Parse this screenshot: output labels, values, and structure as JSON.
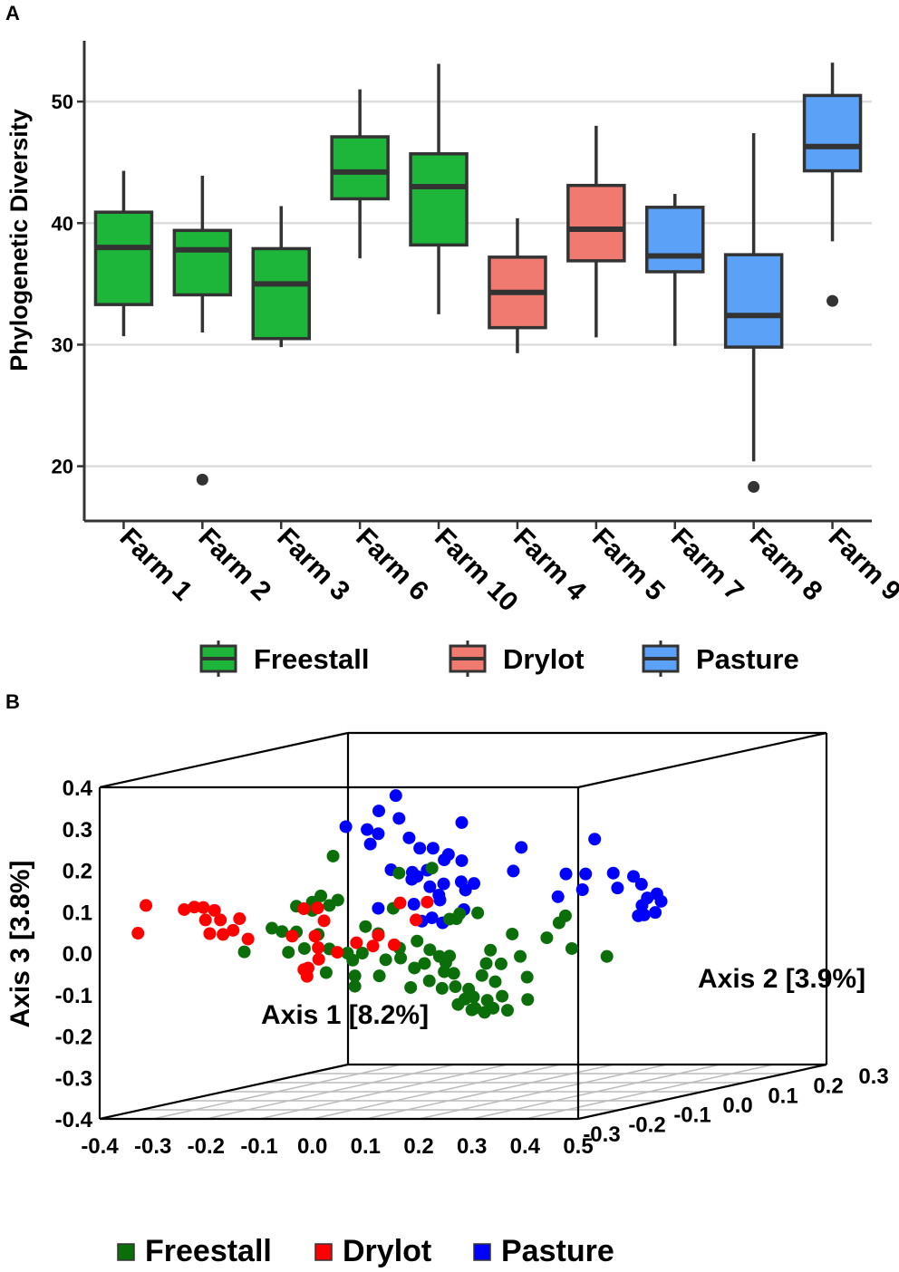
{
  "figure": {
    "panel_a_label": "A",
    "panel_b_label": "B"
  },
  "chart_data": [
    {
      "type": "box",
      "ylabel": "Phylogenetic Diversity",
      "ylim": [
        15.5,
        55
      ],
      "yticks": [
        20,
        30,
        40,
        50
      ],
      "grid": true,
      "legend": {
        "placement": "bottom",
        "entries": [
          {
            "name": "Freestall",
            "color": "#1db53a"
          },
          {
            "name": "Drylot",
            "color": "#f07a70"
          },
          {
            "name": "Pasture",
            "color": "#5aa1f7"
          }
        ]
      },
      "boxes": [
        {
          "category": "Farm 1",
          "group": "Freestall",
          "whisker_low": 30.7,
          "q1": 33.3,
          "median": 38.0,
          "q3": 40.9,
          "whisker_high": 44.3,
          "outliers": []
        },
        {
          "category": "Farm 2",
          "group": "Freestall",
          "whisker_low": 31.0,
          "q1": 34.1,
          "median": 37.8,
          "q3": 39.4,
          "whisker_high": 43.9,
          "outliers": [
            18.9
          ]
        },
        {
          "category": "Farm 3",
          "group": "Freestall",
          "whisker_low": 29.8,
          "q1": 30.5,
          "median": 35.0,
          "q3": 37.9,
          "whisker_high": 41.4,
          "outliers": []
        },
        {
          "category": "Farm 6",
          "group": "Freestall",
          "whisker_low": 37.1,
          "q1": 42.0,
          "median": 44.2,
          "q3": 47.1,
          "whisker_high": 51.0,
          "outliers": []
        },
        {
          "category": "Farm 10",
          "group": "Freestall",
          "whisker_low": 32.5,
          "q1": 38.2,
          "median": 43.0,
          "q3": 45.7,
          "whisker_high": 53.1,
          "outliers": []
        },
        {
          "category": "Farm 4",
          "group": "Drylot",
          "whisker_low": 29.3,
          "q1": 31.4,
          "median": 34.3,
          "q3": 37.2,
          "whisker_high": 40.4,
          "outliers": []
        },
        {
          "category": "Farm 5",
          "group": "Drylot",
          "whisker_low": 30.6,
          "q1": 36.9,
          "median": 39.5,
          "q3": 43.1,
          "whisker_high": 48.0,
          "outliers": []
        },
        {
          "category": "Farm 7",
          "group": "Pasture",
          "whisker_low": 29.9,
          "q1": 36.0,
          "median": 37.3,
          "q3": 41.3,
          "whisker_high": 42.4,
          "outliers": []
        },
        {
          "category": "Farm 8",
          "group": "Pasture",
          "whisker_low": 20.4,
          "q1": 29.8,
          "median": 32.4,
          "q3": 37.4,
          "whisker_high": 47.4,
          "outliers": [
            18.3
          ]
        },
        {
          "category": "Farm 9",
          "group": "Pasture",
          "whisker_low": 38.5,
          "q1": 44.3,
          "median": 46.3,
          "q3": 50.5,
          "whisker_high": 53.2,
          "outliers": [
            33.6
          ]
        }
      ]
    },
    {
      "type": "scatter3d",
      "xlabel": "Axis 1 [8.2%]",
      "ylabel": "Axis 2 [3.9%]",
      "zlabel": "Axis 3 [3.8%]",
      "xlim": [
        -0.4,
        0.5
      ],
      "ylim": [
        -0.3,
        0.3
      ],
      "zlim": [
        -0.4,
        0.4
      ],
      "xticks": [
        "-0.4",
        "-0.3",
        "-0.2",
        "-0.1",
        "0.0",
        "0.1",
        "0.2",
        "0.3",
        "0.4",
        "0.5"
      ],
      "yticks": [
        "-0.3",
        "-0.2",
        "-0.1",
        "0.0",
        "0.1",
        "0.2",
        "0.3"
      ],
      "zticks": [
        "0.4",
        "0.3",
        "0.2",
        "0.1",
        "0.0",
        "-0.1",
        "-0.2",
        "-0.3",
        "-0.4"
      ],
      "legend": {
        "placement": "bottom",
        "entries": [
          {
            "name": "Freestall",
            "color": "#0b6e0b"
          },
          {
            "name": "Drylot",
            "color": "#ff0000"
          },
          {
            "name": "Pasture",
            "color": "#0000ff"
          }
        ]
      },
      "note": "Points given as projected plot coordinates: x and z read against the front Axis 1 / Axis 3 scales.",
      "series": [
        {
          "name": "Pasture",
          "color": "#0000ff",
          "points": [
            [
              0.157,
              0.38
            ],
            [
              0.125,
              0.343
            ],
            [
              0.163,
              0.325
            ],
            [
              0.063,
              0.305
            ],
            [
              0.103,
              0.298
            ],
            [
              0.124,
              0.288
            ],
            [
              0.281,
              0.315
            ],
            [
              0.182,
              0.278
            ],
            [
              0.109,
              0.263
            ],
            [
              0.202,
              0.253
            ],
            [
              0.227,
              0.253
            ],
            [
              0.393,
              0.255
            ],
            [
              0.531,
              0.275
            ],
            [
              0.256,
              0.238
            ],
            [
              0.248,
              0.225
            ],
            [
              0.281,
              0.223
            ],
            [
              0.378,
              0.198
            ],
            [
              0.477,
              0.191
            ],
            [
              0.514,
              0.191
            ],
            [
              0.148,
              0.201
            ],
            [
              0.188,
              0.195
            ],
            [
              0.216,
              0.2
            ],
            [
              0.566,
              0.193
            ],
            [
              0.604,
              0.185
            ],
            [
              0.187,
              0.178
            ],
            [
              0.197,
              0.185
            ],
            [
              0.221,
              0.16
            ],
            [
              0.247,
              0.167
            ],
            [
              0.28,
              0.172
            ],
            [
              0.304,
              0.168
            ],
            [
              0.288,
              0.152
            ],
            [
              0.574,
              0.157
            ],
            [
              0.508,
              0.153
            ],
            [
              0.462,
              0.136
            ],
            [
              0.619,
              0.166
            ],
            [
              0.648,
              0.143
            ],
            [
              0.63,
              0.133
            ],
            [
              0.656,
              0.125
            ],
            [
              0.62,
              0.115
            ],
            [
              0.645,
              0.098
            ],
            [
              0.624,
              0.092
            ],
            [
              0.613,
              0.09
            ],
            [
              0.238,
              0.14
            ],
            [
              0.24,
              0.128
            ],
            [
              0.191,
              0.118
            ],
            [
              0.124,
              0.108
            ],
            [
              0.285,
              0.105
            ],
            [
              0.225,
              0.085
            ],
            [
              0.245,
              0.073
            ],
            [
              0.206,
              0.077
            ]
          ]
        },
        {
          "name": "Freestall",
          "color": "#0b6e0b",
          "points": [
            [
              0.039,
              0.234
            ],
            [
              0.163,
              0.193
            ],
            [
              0.225,
              0.205
            ],
            [
              0.0,
              0.123
            ],
            [
              0.0,
              0.103
            ],
            [
              0.152,
              0.108
            ],
            [
              0.277,
              0.095
            ],
            [
              0.311,
              0.097
            ],
            [
              0.258,
              0.082
            ],
            [
              0.271,
              0.083
            ],
            [
              0.476,
              0.09
            ],
            [
              0.464,
              0.073
            ],
            [
              -0.076,
              0.06
            ],
            [
              -0.057,
              0.052
            ],
            [
              -0.03,
              0.051
            ],
            [
              0.011,
              0.045
            ],
            [
              0.1,
              0.064
            ],
            [
              0.124,
              0.047
            ],
            [
              0.197,
              0.029
            ],
            [
              0.376,
              0.046
            ],
            [
              0.441,
              0.037
            ],
            [
              -0.128,
              0.003
            ],
            [
              -0.045,
              0.002
            ],
            [
              -0.015,
              0.011
            ],
            [
              0.032,
              0.01
            ],
            [
              0.066,
              0.0
            ],
            [
              0.094,
              0.0
            ],
            [
              0.164,
              0.012
            ],
            [
              0.221,
              0.008
            ],
            [
              0.239,
              -0.008
            ],
            [
              0.258,
              -0.007
            ],
            [
              0.335,
              0.007
            ],
            [
              0.391,
              -0.008
            ],
            [
              0.488,
              0.011
            ],
            [
              0.554,
              -0.008
            ],
            [
              0.076,
              -0.017
            ],
            [
              0.138,
              -0.016
            ],
            [
              0.166,
              -0.012
            ],
            [
              0.211,
              -0.025
            ],
            [
              0.251,
              -0.023
            ],
            [
              0.327,
              -0.025
            ],
            [
              0.355,
              -0.026
            ],
            [
              0.192,
              -0.036
            ],
            [
              0.248,
              -0.045
            ],
            [
              0.266,
              -0.049
            ],
            [
              0.08,
              -0.055
            ],
            [
              0.126,
              -0.055
            ],
            [
              0.22,
              -0.067
            ],
            [
              0.319,
              -0.054
            ],
            [
              0.344,
              -0.069
            ],
            [
              0.404,
              -0.058
            ],
            [
              0.185,
              -0.083
            ],
            [
              0.244,
              -0.085
            ],
            [
              0.269,
              -0.081
            ],
            [
              0.294,
              -0.087
            ],
            [
              0.08,
              -0.08
            ],
            [
              0.026,
              -0.047
            ],
            [
              0.287,
              -0.111
            ],
            [
              0.303,
              -0.106
            ],
            [
              0.329,
              -0.114
            ],
            [
              0.357,
              -0.104
            ],
            [
              0.274,
              -0.124
            ],
            [
              0.3,
              -0.137
            ],
            [
              0.306,
              -0.133
            ],
            [
              0.324,
              -0.143
            ],
            [
              0.34,
              -0.133
            ],
            [
              0.367,
              -0.138
            ],
            [
              0.405,
              -0.112
            ],
            [
              -0.03,
              0.113
            ],
            [
              0.032,
              0.115
            ],
            [
              0.048,
              0.128
            ],
            [
              0.016,
              0.138
            ]
          ]
        },
        {
          "name": "Drylot",
          "color": "#ff0000",
          "points": [
            [
              -0.313,
              0.115
            ],
            [
              -0.241,
              0.105
            ],
            [
              -0.222,
              0.111
            ],
            [
              -0.205,
              0.11
            ],
            [
              -0.184,
              0.103
            ],
            [
              -0.173,
              0.08
            ],
            [
              -0.137,
              0.083
            ],
            [
              -0.016,
              0.107
            ],
            [
              0.01,
              0.109
            ],
            [
              -0.201,
              0.08
            ],
            [
              -0.193,
              0.047
            ],
            [
              -0.168,
              0.045
            ],
            [
              -0.149,
              0.055
            ],
            [
              -0.121,
              0.034
            ],
            [
              -0.038,
              0.041
            ],
            [
              0.005,
              0.041
            ],
            [
              0.022,
              0.078
            ],
            [
              -0.328,
              0.048
            ],
            [
              0.165,
              0.121
            ],
            [
              0.216,
              0.123
            ],
            [
              0.195,
              0.08
            ],
            [
              0.011,
              0.013
            ],
            [
              0.012,
              -0.015
            ],
            [
              0.047,
              0.002
            ],
            [
              0.083,
              0.025
            ],
            [
              -0.016,
              -0.04
            ],
            [
              -0.008,
              -0.036
            ],
            [
              -0.01,
              -0.056
            ],
            [
              0.124,
              0.043
            ],
            [
              0.114,
              0.017
            ],
            [
              0.154,
              0.02
            ]
          ]
        }
      ]
    }
  ]
}
